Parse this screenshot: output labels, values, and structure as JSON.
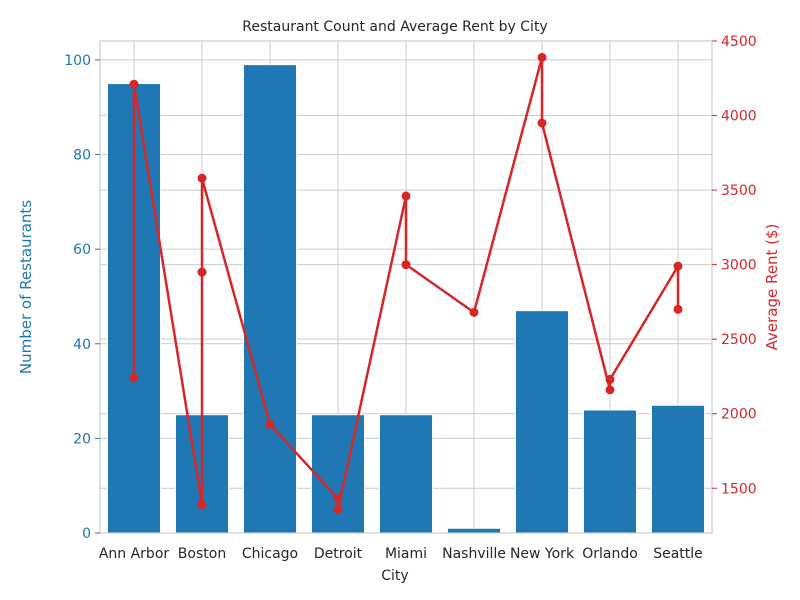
{
  "chart_data": {
    "type": "bar+line",
    "title": "Restaurant Count and Average Rent by City",
    "xlabel": "City",
    "ylabel_left": "Number of Restaurants",
    "ylabel_right": "Average Rent ($)",
    "categories": [
      "Ann Arbor",
      "Boston",
      "Chicago",
      "Detroit",
      "Miami",
      "Nashville",
      "New York",
      "Orlando",
      "Seattle"
    ],
    "ylim_left": [
      0,
      104
    ],
    "ylim_right": [
      1200,
      4500
    ],
    "yticks_left": [
      0,
      20,
      40,
      60,
      80,
      100
    ],
    "yticks_right": [
      1500,
      2000,
      2500,
      3000,
      3500,
      4000,
      4500
    ],
    "grid": true,
    "series": [
      {
        "axis": "left",
        "kind": "bar",
        "color": "#1f77b4",
        "values": [
          95,
          25,
          99,
          25,
          25,
          1,
          47,
          26,
          27
        ]
      },
      {
        "axis": "right",
        "kind": "line",
        "color": "#d62728",
        "points": [
          {
            "x": "Ann Arbor",
            "y": 2240
          },
          {
            "x": "Ann Arbor",
            "y": 4210
          },
          {
            "x": "Boston",
            "y": 1390
          },
          {
            "x": "Boston",
            "y": 2950
          },
          {
            "x": "Boston",
            "y": 3580
          },
          {
            "x": "Chicago",
            "y": 1930
          },
          {
            "x": "Detroit",
            "y": 1430
          },
          {
            "x": "Detroit",
            "y": 1360
          },
          {
            "x": "Miami",
            "y": 3460
          },
          {
            "x": "Miami",
            "y": 3000
          },
          {
            "x": "Nashville",
            "y": 2680
          },
          {
            "x": "New York",
            "y": 4390
          },
          {
            "x": "New York",
            "y": 3950
          },
          {
            "x": "Orlando",
            "y": 2160
          },
          {
            "x": "Orlando",
            "y": 2230
          },
          {
            "x": "Seattle",
            "y": 2990
          },
          {
            "x": "Seattle",
            "y": 2700
          }
        ]
      }
    ]
  }
}
